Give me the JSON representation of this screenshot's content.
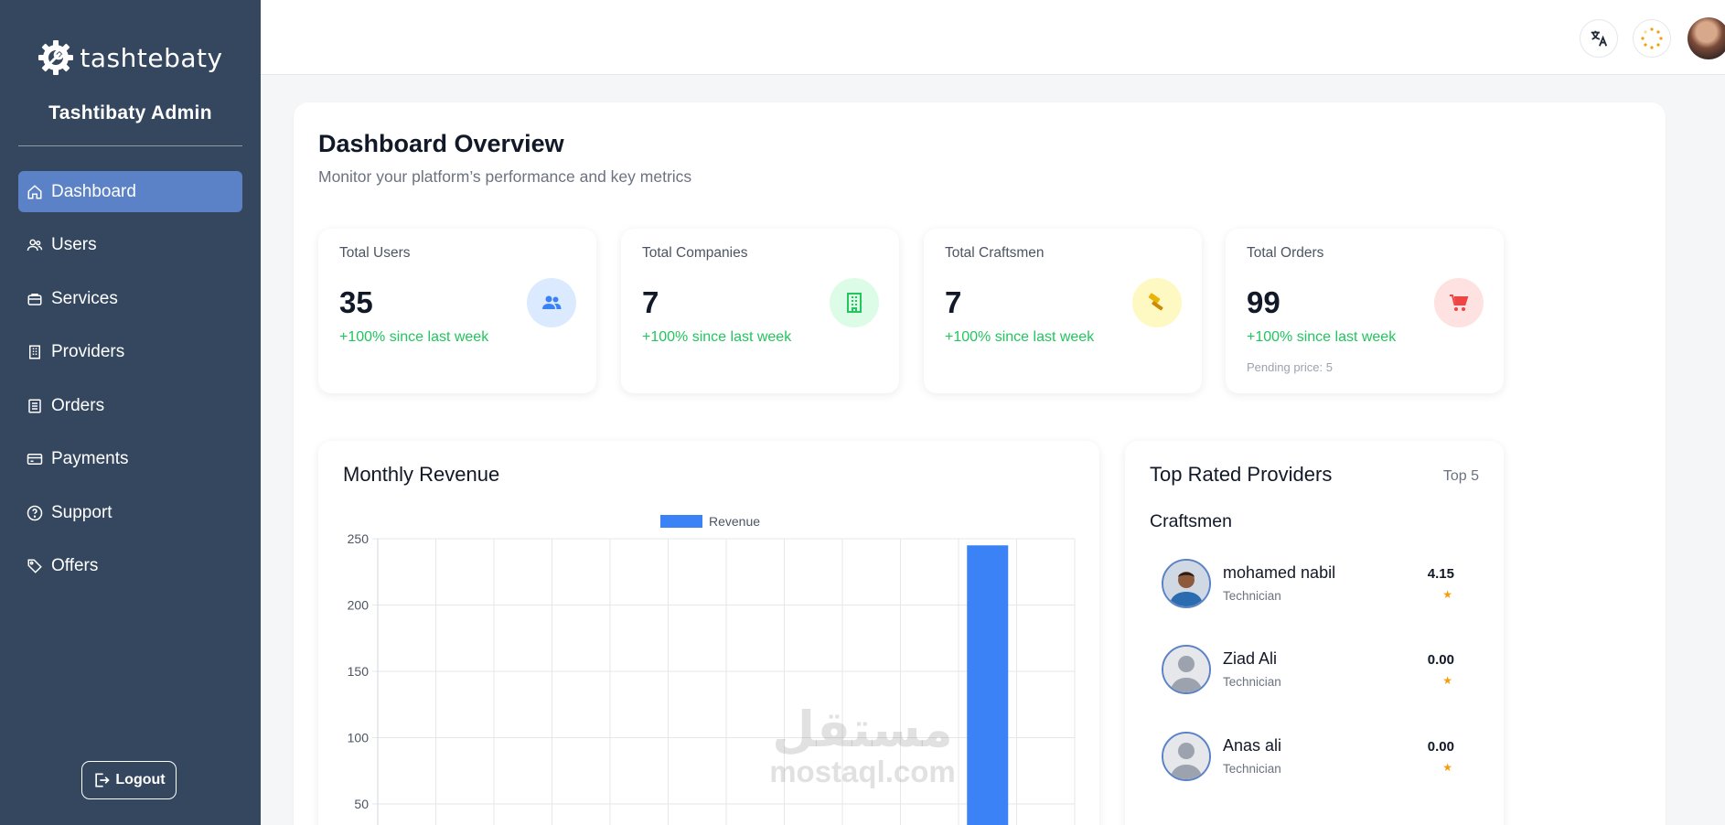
{
  "brand": {
    "name": "tashtebaty"
  },
  "sidebar": {
    "admin_title": "Tashtibaty Admin",
    "items": [
      {
        "label": "Dashboard",
        "icon": "home-icon",
        "active": true
      },
      {
        "label": "Users",
        "icon": "users-icon"
      },
      {
        "label": "Services",
        "icon": "briefcase-icon"
      },
      {
        "label": "Providers",
        "icon": "building-icon"
      },
      {
        "label": "Orders",
        "icon": "list-icon"
      },
      {
        "label": "Payments",
        "icon": "credit-card-icon"
      },
      {
        "label": "Support",
        "icon": "help-circle-icon"
      },
      {
        "label": "Offers",
        "icon": "tag-icon"
      }
    ],
    "logout_label": "Logout"
  },
  "topbar": {
    "translate_icon": "translate-icon",
    "loading_icon": "spinner-icon"
  },
  "header": {
    "title": "Dashboard Overview",
    "subtitle": "Monitor your platform’s performance and key metrics"
  },
  "stats": [
    {
      "label": "Total Users",
      "value": "35",
      "change": "+100% since last week",
      "icon": "users-icon",
      "color": "#3b82f6",
      "bg": "#dbeafe"
    },
    {
      "label": "Total Companies",
      "value": "7",
      "change": "+100% since last week",
      "icon": "building-icon",
      "color": "#22c55e",
      "bg": "#dcfce7"
    },
    {
      "label": "Total Craftsmen",
      "value": "7",
      "change": "+100% since last week",
      "icon": "hammer-icon",
      "color": "#eab308",
      "bg": "#fef9c3"
    },
    {
      "label": "Total Orders",
      "value": "99",
      "change": "+100% since last week",
      "extra": "Pending price: 5",
      "icon": "cart-icon",
      "color": "#ef4444",
      "bg": "#fee2e2"
    }
  ],
  "revenue": {
    "title": "Monthly Revenue"
  },
  "chart_data": {
    "type": "bar",
    "title": "Monthly Revenue",
    "series": [
      {
        "name": "Revenue",
        "color": "#3b82f6",
        "values": [
          0,
          0,
          0,
          0,
          0,
          0,
          0,
          0,
          0,
          0,
          245,
          0
        ]
      }
    ],
    "y_ticks": [
      250,
      200,
      150,
      100,
      50
    ],
    "ylim": [
      0,
      250
    ],
    "legend_position": "top",
    "grid": true
  },
  "providers": {
    "title": "Top Rated Providers",
    "badge": "Top 5",
    "section": "Craftsmen",
    "items": [
      {
        "name": "mohamed nabil",
        "role": "Technician",
        "rating": "4.15",
        "star": "★",
        "photo": true
      },
      {
        "name": "Ziad Ali",
        "role": "Technician",
        "rating": "0.00",
        "star": "★"
      },
      {
        "name": "Anas ali",
        "role": "Technician",
        "rating": "0.00",
        "star": "★"
      }
    ]
  },
  "watermark": {
    "arabic": "مستقل",
    "latin": "mostaql.com"
  }
}
